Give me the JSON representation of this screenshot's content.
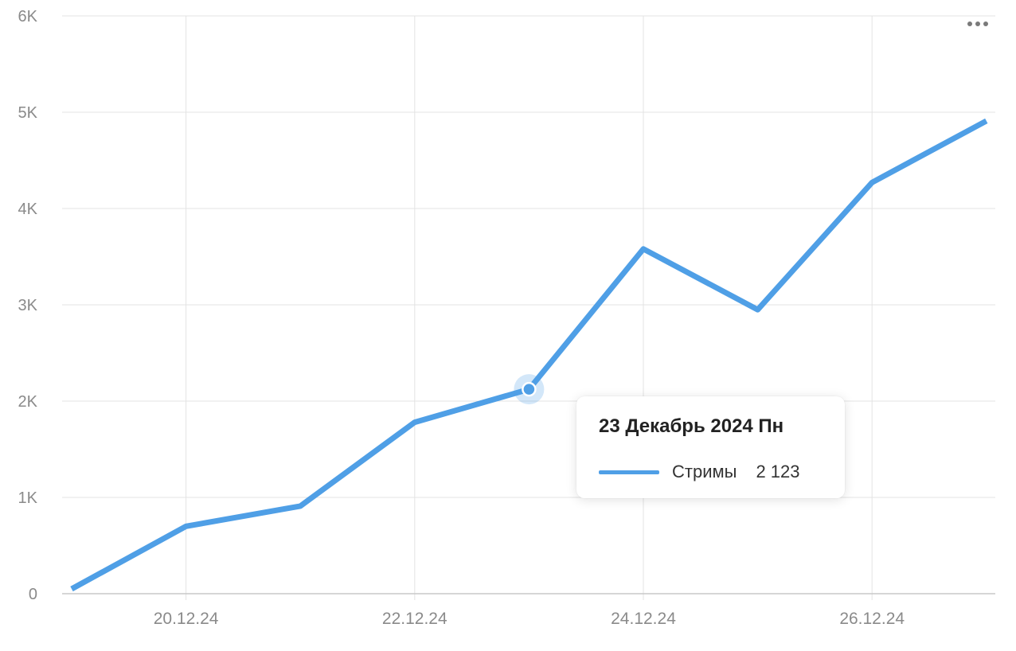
{
  "chart_data": {
    "type": "line",
    "x": [
      "19.12.24",
      "20.12.24",
      "21.12.24",
      "22.12.24",
      "23.12.24",
      "24.12.24",
      "25.12.24",
      "26.12.24",
      "27.12.24"
    ],
    "x_tick_labels": [
      "20.12.24",
      "22.12.24",
      "24.12.24",
      "26.12.24"
    ],
    "y_tick_labels": [
      "0",
      "1K",
      "2K",
      "3K",
      "4K",
      "5K",
      "6K"
    ],
    "ylim": [
      0,
      6000
    ],
    "grid": true,
    "series": [
      {
        "name": "Стримы",
        "color": "#4f9fe6",
        "values": [
          50,
          700,
          910,
          1780,
          2123,
          3580,
          2950,
          4270,
          4910
        ]
      }
    ],
    "highlighted_index": 4
  },
  "tooltip": {
    "title": "23 Декабрь 2024 Пн",
    "series_name": "Стримы",
    "value": "2 123"
  },
  "menu": {
    "icon": "more-horizontal-icon"
  }
}
